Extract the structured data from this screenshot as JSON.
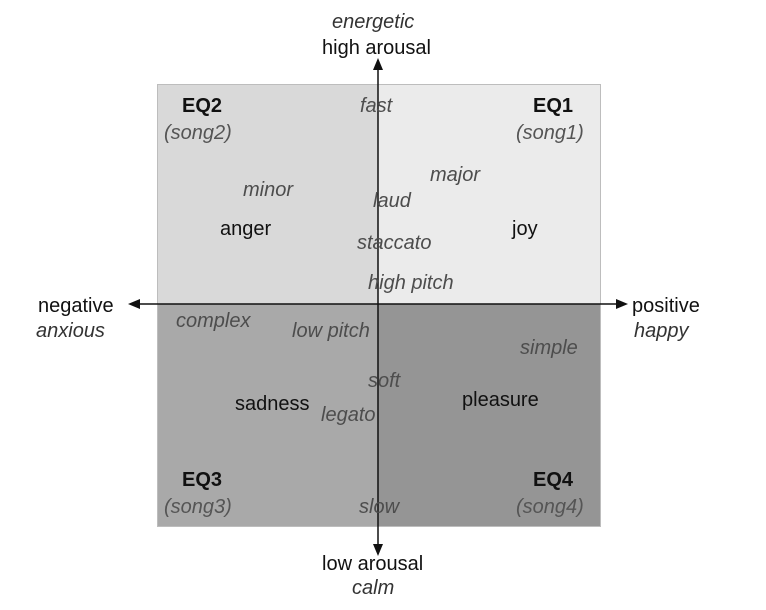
{
  "axes": {
    "top": {
      "italic": "energetic",
      "label": "high arousal"
    },
    "bottom": {
      "label": "low arousal",
      "italic": "calm"
    },
    "left": {
      "label": "negative",
      "italic": "anxious"
    },
    "right": {
      "label": "positive",
      "italic": "happy"
    }
  },
  "quadrants": {
    "q1": {
      "title": "EQ1",
      "song": "(song1)"
    },
    "q2": {
      "title": "EQ2",
      "song": "(song2)"
    },
    "q3": {
      "title": "EQ3",
      "song": "(song3)"
    },
    "q4": {
      "title": "EQ4",
      "song": "(song4)"
    }
  },
  "emotions": {
    "joy": "joy",
    "anger": "anger",
    "sadness": "sadness",
    "pleasure": "pleasure"
  },
  "features": {
    "fast": "fast",
    "minor": "minor",
    "major": "major",
    "laud": "laud",
    "staccato": "staccato",
    "high_pitch": "high pitch",
    "complex": "complex",
    "low_pitch": "low pitch",
    "simple": "simple",
    "soft": "soft",
    "legato": "legato",
    "slow": "slow"
  },
  "colors": {
    "q1": "#ebebeb",
    "q2": "#d9d9d9",
    "q3": "#a9a9a9",
    "q4": "#959595",
    "axis": "#111111"
  }
}
